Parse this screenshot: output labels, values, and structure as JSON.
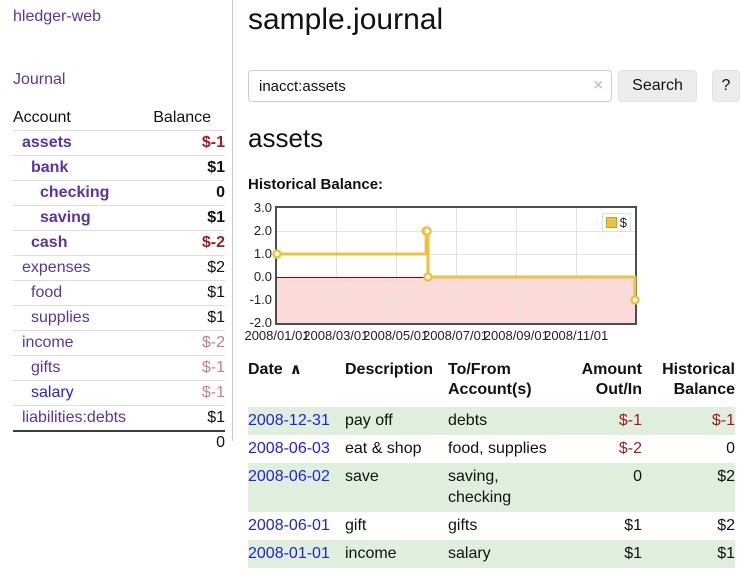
{
  "app": {
    "title": "hledger-web",
    "journal_link": "Journal"
  },
  "colors": {
    "link_purple": "#5b34a2",
    "link_blue": "#2222dd",
    "negative": "#9e1c1c",
    "negative_faded": "#c58282",
    "row_stripe_green": "#e0eedd",
    "chart_series_gold": "#edc240",
    "negative_zone_pink": "#fcdada",
    "zero_line_red": "#8b0000"
  },
  "sidebar": {
    "accounts_header": {
      "account": "Account",
      "balance": "Balance"
    },
    "accounts": [
      {
        "name": "assets",
        "balance": "$-1",
        "indent": 1,
        "bold": true
      },
      {
        "name": "bank",
        "balance": "$1",
        "indent": 2,
        "bold": true
      },
      {
        "name": "checking",
        "balance": "0",
        "indent": 3,
        "bold": true
      },
      {
        "name": "saving",
        "balance": "$1",
        "indent": 3,
        "bold": true
      },
      {
        "name": "cash",
        "balance": "$-2",
        "indent": 2,
        "bold": true
      },
      {
        "name": "expenses",
        "balance": "$2",
        "indent": 1,
        "bold": false
      },
      {
        "name": "food",
        "balance": "$1",
        "indent": 2,
        "bold": false
      },
      {
        "name": "supplies",
        "balance": "$1",
        "indent": 2,
        "bold": false
      },
      {
        "name": "income",
        "balance": "$-2",
        "indent": 1,
        "bold": false
      },
      {
        "name": "gifts",
        "balance": "$-1",
        "indent": 2,
        "bold": false
      },
      {
        "name": "salary",
        "balance": "$-1",
        "indent": 2,
        "bold": false,
        "blue": true
      },
      {
        "name": "liabilities:debts",
        "balance": "$1",
        "indent": 1,
        "bold": false
      }
    ],
    "total": "0"
  },
  "header": {
    "title": "sample.journal"
  },
  "search": {
    "value": "inacct:assets",
    "clear_icon": "×",
    "button": "Search",
    "help_button": "?"
  },
  "account_page": {
    "title": "assets",
    "chart_label": "Historical Balance:"
  },
  "chart_data": {
    "type": "line",
    "title": "Historical Balance:",
    "legend": [
      {
        "label": "$",
        "color": "#edc240"
      }
    ],
    "series": [
      {
        "name": "$",
        "step": true,
        "points": [
          [
            "2008-01-01",
            1
          ],
          [
            "2008-06-01",
            2
          ],
          [
            "2008-06-02",
            2
          ],
          [
            "2008-06-03",
            0
          ],
          [
            "2008-12-31",
            -1
          ]
        ]
      }
    ],
    "series_color": "#edc240",
    "x_range": [
      "2008-01-01",
      "2008-12-31"
    ],
    "y_range": [
      -2,
      3
    ],
    "x_ticks": [
      {
        "date": "2008-01-01",
        "label": "2008/01/01"
      },
      {
        "date": "2008-03-01",
        "label": "2008/03/01"
      },
      {
        "date": "2008-05-01",
        "label": "2008/05/01"
      },
      {
        "date": "2008-07-01",
        "label": "2008/07/01"
      },
      {
        "date": "2008-09-01",
        "label": "2008/09/01"
      },
      {
        "date": "2008-11-01",
        "label": "2008/11/01"
      }
    ],
    "y_ticks": [
      {
        "value": 3,
        "label": "3.0"
      },
      {
        "value": 2,
        "label": "2.0"
      },
      {
        "value": 1,
        "label": "1.0"
      },
      {
        "value": 0,
        "label": "0.0"
      },
      {
        "value": -1,
        "label": "-1.0"
      },
      {
        "value": -2,
        "label": "-2.0"
      }
    ],
    "negative_region": {
      "from": -2,
      "to": 0,
      "fill": "#fcdada",
      "zero_line": "#8b0000"
    },
    "grid": true,
    "legend_position": "top-right"
  },
  "register": {
    "sort_icon": "∧",
    "headers": [
      {
        "line1": "Date",
        "line2": ""
      },
      {
        "line1": "Description",
        "line2": ""
      },
      {
        "line1": "To/From",
        "line2": "Account(s)"
      },
      {
        "line1": "Amount",
        "line2": "Out/In"
      },
      {
        "line1": "Historical",
        "line2": "Balance"
      }
    ],
    "rows": [
      {
        "date": "2008-12-31",
        "description": "pay off",
        "accounts": "debts",
        "amount": "$-1",
        "balance": "$-1"
      },
      {
        "date": "2008-06-03",
        "description": "eat & shop",
        "accounts": "food, supplies",
        "amount": "$-2",
        "balance": "0"
      },
      {
        "date": "2008-06-02",
        "description": "save",
        "accounts": "saving, checking",
        "amount": "0",
        "balance": "$2"
      },
      {
        "date": "2008-06-01",
        "description": "gift",
        "accounts": "gifts",
        "amount": "$1",
        "balance": "$2"
      },
      {
        "date": "2008-01-01",
        "description": "income",
        "accounts": "salary",
        "amount": "$1",
        "balance": "$1"
      }
    ]
  }
}
